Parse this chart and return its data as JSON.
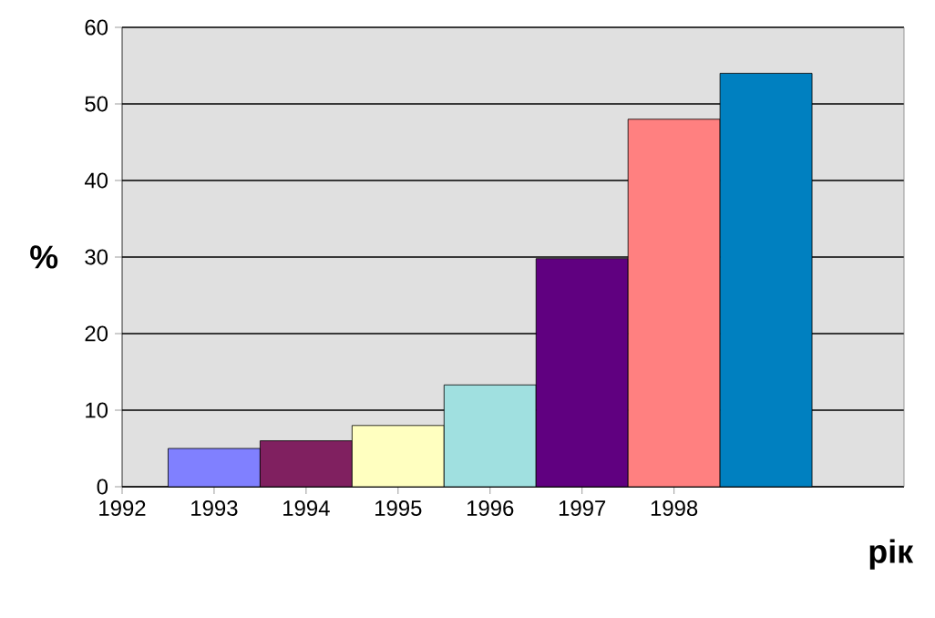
{
  "chart_data": {
    "type": "bar",
    "xlabel": "рік",
    "ylabel": "%",
    "x": [
      1993,
      1994,
      1995,
      1996,
      1997,
      1998,
      1999
    ],
    "values": [
      5,
      6,
      8,
      13.3,
      29.8,
      48,
      54
    ],
    "colors": [
      "#8080ff",
      "#802060",
      "#ffffc0",
      "#a0e0e0",
      "#600080",
      "#ff8080",
      "#0080c0"
    ],
    "xlim": [
      1992,
      2000.5
    ],
    "xticks": [
      1992,
      1993,
      1994,
      1995,
      1996,
      1997,
      1998
    ],
    "ylim": [
      0,
      60
    ],
    "yticks": [
      0,
      10,
      20,
      30,
      40,
      50,
      60
    ],
    "grid": "y"
  }
}
